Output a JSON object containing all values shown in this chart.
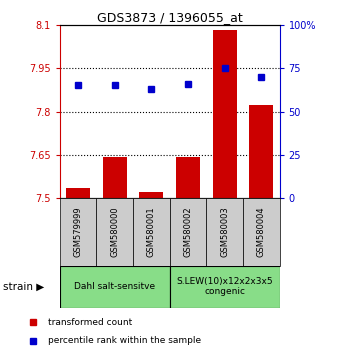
{
  "title": "GDS3873 / 1396055_at",
  "samples": [
    "GSM579999",
    "GSM580000",
    "GSM580001",
    "GSM580002",
    "GSM580003",
    "GSM580004"
  ],
  "bar_values": [
    7.535,
    7.642,
    7.522,
    7.642,
    8.082,
    7.822
  ],
  "bar_baseline": 7.5,
  "percentile_values": [
    65,
    65,
    63,
    66,
    75,
    70
  ],
  "ylim_left": [
    7.5,
    8.1
  ],
  "ylim_right": [
    0,
    100
  ],
  "yticks_left": [
    7.5,
    7.65,
    7.8,
    7.95,
    8.1
  ],
  "ytick_labels_left": [
    "7.5",
    "7.65",
    "7.8",
    "7.95",
    "8.1"
  ],
  "yticks_right": [
    0,
    25,
    50,
    75,
    100
  ],
  "ytick_labels_right": [
    "0",
    "25",
    "50",
    "75",
    "100%"
  ],
  "hgrid_values": [
    7.65,
    7.8,
    7.95
  ],
  "bar_color": "#cc0000",
  "dot_color": "#0000cc",
  "left_axis_color": "#cc0000",
  "right_axis_color": "#0000cc",
  "group1_samples": [
    0,
    1,
    2
  ],
  "group2_samples": [
    3,
    4,
    5
  ],
  "group1_label": "Dahl salt-sensitve",
  "group2_label": "S.LEW(10)x12x2x3x5\ncongenic",
  "group_bg_color": "#88dd88",
  "sample_bg_color": "#cccccc",
  "legend_bar_label": "transformed count",
  "legend_dot_label": "percentile rank within the sample",
  "strain_label": "strain"
}
